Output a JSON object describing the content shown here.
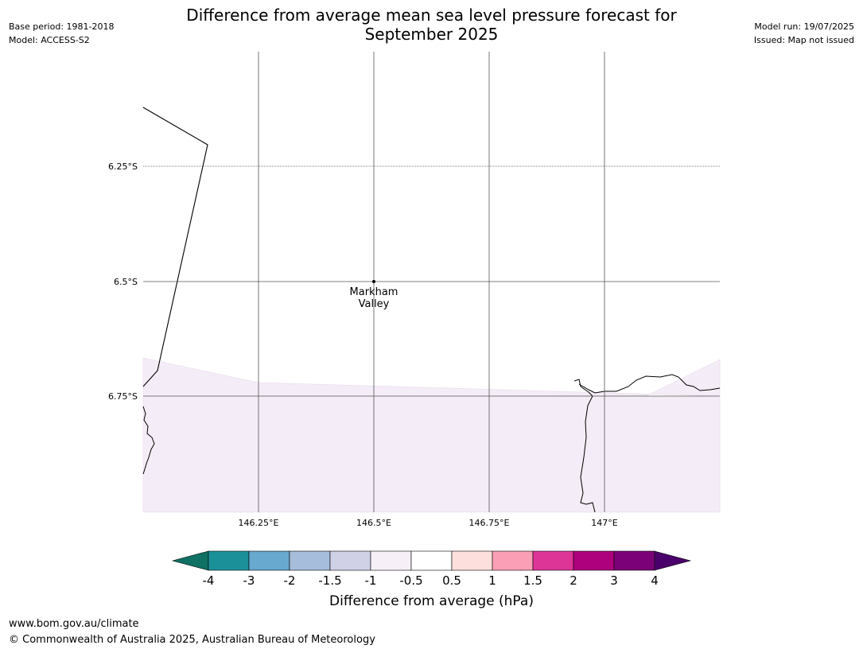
{
  "header": {
    "title_line1": "Difference from average mean sea level pressure forecast for",
    "title_line2": "September 2025",
    "base_period": "Base period: 1981-2018",
    "model": "Model: ACCESS-S2",
    "model_run": "Model run: 19/07/2025",
    "issued": "Issued: Map not issued"
  },
  "map": {
    "lat_labels": [
      "6.25°S",
      "6.5°S",
      "6.75°S"
    ],
    "lon_labels": [
      "146.25°E",
      "146.5°E",
      "146.75°E",
      "147°E"
    ],
    "place": {
      "line1": "Markham",
      "line2": "Valley"
    },
    "colors": {
      "anomaly_fill": "#f4ecf6",
      "coast": "#000000",
      "grid": "#444444"
    }
  },
  "colorbar": {
    "ticks": [
      "-4",
      "-3",
      "-2",
      "-1.5",
      "-1",
      "-0.5",
      "0.5",
      "1",
      "1.5",
      "2",
      "3",
      "4"
    ],
    "colors": [
      "#0f7164",
      "#1c9099",
      "#67a9cf",
      "#a6bddb",
      "#d0d1e6",
      "#f6eff7",
      "#ffffff",
      "#fde0dd",
      "#fa9fb5",
      "#dd3497",
      "#ae017e",
      "#7a0177",
      "#49006a"
    ],
    "label": "Difference from average (hPa)"
  },
  "footer": {
    "url": "www.bom.gov.au/climate",
    "copyright": "© Commonwealth of Australia 2025, Australian Bureau of Meteorology"
  }
}
